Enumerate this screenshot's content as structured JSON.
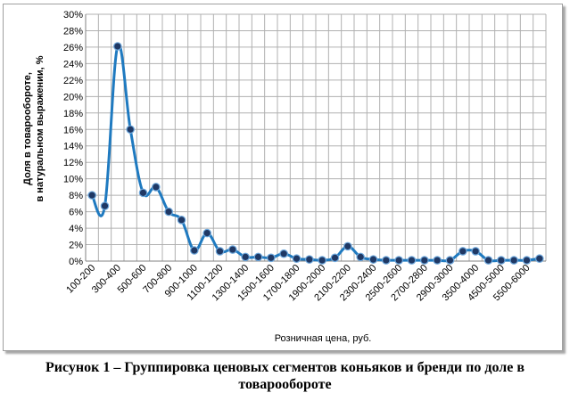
{
  "chart_data": {
    "type": "line",
    "title": "",
    "xlabel": "Розничная цена, руб.",
    "ylabel": "Доля в товарообороте,  в натуральном выражении, %",
    "ylim": [
      0,
      30
    ],
    "yticks": [
      "0%",
      "2%",
      "4%",
      "6%",
      "8%",
      "10%",
      "12%",
      "14%",
      "16%",
      "18%",
      "20%",
      "22%",
      "24%",
      "26%",
      "28%",
      "30%"
    ],
    "ytick_values": [
      0,
      2,
      4,
      6,
      8,
      10,
      12,
      14,
      16,
      18,
      20,
      22,
      24,
      26,
      28,
      30
    ],
    "xtick_labels": [
      "100-200",
      "300-400",
      "500-600",
      "700-800",
      "900-1000",
      "1100-1200",
      "1300-1400",
      "1500-1600",
      "1700-1800",
      "1900-2000",
      "2100-2200",
      "2300-2400",
      "2500-2600",
      "2700-2800",
      "2900-3000",
      "3500-4000",
      "4500-5000",
      "5500-6000"
    ],
    "grid": true,
    "legend": "none",
    "series": [
      {
        "color": "#1f7ac0",
        "marker_color": "#1f3864",
        "values": [
          8.0,
          6.7,
          26.1,
          16.0,
          8.3,
          9.0,
          6.0,
          5.0,
          1.3,
          3.4,
          1.2,
          1.4,
          0.5,
          0.5,
          0.4,
          0.9,
          0.3,
          0.2,
          0.1,
          0.4,
          1.8,
          0.5,
          0.2,
          0.1,
          0.1,
          0.1,
          0.1,
          0.1,
          0.1,
          1.2,
          1.2,
          0.1,
          0.1,
          0.1,
          0.1,
          0.3
        ]
      }
    ]
  },
  "caption": {
    "line1": "Рисунок 1 – Группировка ценовых сегментов коньяков и бренди по доле в",
    "line2": "товарообороте"
  }
}
